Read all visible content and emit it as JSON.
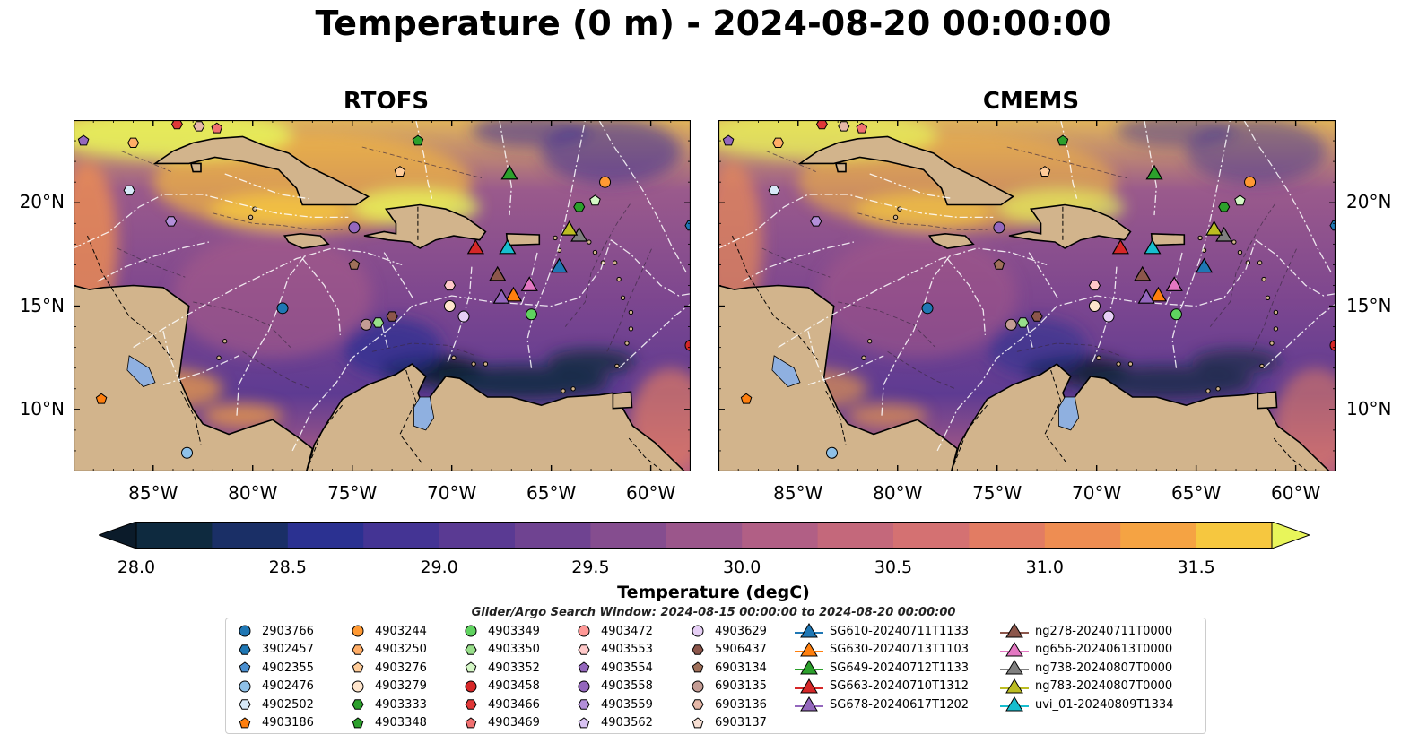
{
  "title": "Temperature (0 m) - 2024-08-20 00:00:00",
  "panels": [
    {
      "id": "rtofs",
      "title": "RTOFS"
    },
    {
      "id": "cmems",
      "title": "CMEMS"
    }
  ],
  "map_extent": {
    "lon_min": -89,
    "lon_max": -58,
    "lat_min": 7,
    "lat_max": 24
  },
  "lon_ticks": [
    {
      "value": -85,
      "label": "85°W"
    },
    {
      "value": -80,
      "label": "80°W"
    },
    {
      "value": -75,
      "label": "75°W"
    },
    {
      "value": -70,
      "label": "70°W"
    },
    {
      "value": -65,
      "label": "65°W"
    },
    {
      "value": -60,
      "label": "60°W"
    }
  ],
  "lat_ticks": [
    {
      "value": 20,
      "label": "20°N"
    },
    {
      "value": 15,
      "label": "15°N"
    },
    {
      "value": 10,
      "label": "10°N"
    }
  ],
  "colorbar": {
    "label": "Temperature (degC)",
    "min": 28.0,
    "max": 31.5,
    "step": 0.25,
    "extend": "both",
    "ticks": [
      "28.0",
      "28.5",
      "29.0",
      "29.5",
      "30.0",
      "30.5",
      "31.0",
      "31.5"
    ],
    "colors": [
      "#0e2a3f",
      "#1a2f66",
      "#2b3191",
      "#443494",
      "#5a3a93",
      "#6f4391",
      "#854d8f",
      "#9b568b",
      "#b15f85",
      "#c4687b",
      "#d47172",
      "#e27c63",
      "#ee8d52",
      "#f5a343",
      "#f6c73f"
    ],
    "over_color": "#e8f55a",
    "under_color": "#0b1b2a"
  },
  "colors": {
    "land": "#d2b48c",
    "ocean_mid": "#8d5590",
    "lake": "#8fb0e0"
  },
  "search_window": "Glider/Argo Search Window: 2024-08-15 00:00:00 to 2024-08-20 00:00:00",
  "argo_floats": [
    {
      "id": "2903766",
      "marker": "circle",
      "color": "#1f77b4",
      "lon": -78.5,
      "lat": 14.9
    },
    {
      "id": "3902457",
      "marker": "hexagon",
      "color": "#1f77b4",
      "lon": -58.0,
      "lat": 18.9
    },
    {
      "id": "4902355",
      "marker": "pentagon",
      "color": "#4a8fd0",
      "lon": -84.0,
      "lat": 24.3
    },
    {
      "id": "4902476",
      "marker": "circle",
      "color": "#8fc1e8",
      "lon": -83.3,
      "lat": 7.9
    },
    {
      "id": "4902502",
      "marker": "hexagon",
      "color": "#d7e9f8",
      "lon": -86.2,
      "lat": 20.6
    },
    {
      "id": "4903186",
      "marker": "pentagon",
      "color": "#ff7f0e",
      "lon": -87.6,
      "lat": 10.5
    },
    {
      "id": "4903244",
      "marker": "circle",
      "color": "#ff9933",
      "lon": -62.3,
      "lat": 21.0
    },
    {
      "id": "4903250",
      "marker": "hexagon",
      "color": "#ffad66",
      "lon": -86.0,
      "lat": 22.9
    },
    {
      "id": "4903276",
      "marker": "pentagon",
      "color": "#ffcc99",
      "lon": -72.6,
      "lat": 21.5
    },
    {
      "id": "4903279",
      "marker": "circle",
      "color": "#ffe5cc",
      "lon": -70.1,
      "lat": 15.0
    },
    {
      "id": "4903333",
      "marker": "hexagon",
      "color": "#2ca02c",
      "lon": -63.6,
      "lat": 19.8
    },
    {
      "id": "4903348",
      "marker": "pentagon",
      "color": "#2ca02c",
      "lon": -71.7,
      "lat": 23.0
    },
    {
      "id": "4903349",
      "marker": "circle",
      "color": "#5fd35f",
      "lon": -66.0,
      "lat": 14.6
    },
    {
      "id": "4903350",
      "marker": "hexagon",
      "color": "#98df8a",
      "lon": -73.7,
      "lat": 14.2
    },
    {
      "id": "4903352",
      "marker": "pentagon",
      "color": "#d4f7c5",
      "lon": -62.8,
      "lat": 20.1
    },
    {
      "id": "4903458",
      "marker": "circle",
      "color": "#d62728",
      "lon": -58.0,
      "lat": 13.1
    },
    {
      "id": "4903466",
      "marker": "hexagon",
      "color": "#e03838",
      "lon": -83.8,
      "lat": 23.8
    },
    {
      "id": "4903469",
      "marker": "pentagon",
      "color": "#f07070",
      "lon": -81.8,
      "lat": 23.6
    },
    {
      "id": "4903472",
      "marker": "circle",
      "color": "#ff9896",
      "lon": -88.0,
      "lat": 24.6
    },
    {
      "id": "4903553",
      "marker": "hexagon",
      "color": "#ffc9c9",
      "lon": -70.1,
      "lat": 16.0
    },
    {
      "id": "4903554",
      "marker": "pentagon",
      "color": "#9467bd",
      "lon": -88.5,
      "lat": 23.0
    },
    {
      "id": "4903558",
      "marker": "circle",
      "color": "#9467bd",
      "lon": -74.9,
      "lat": 18.8
    },
    {
      "id": "4903559",
      "marker": "hexagon",
      "color": "#b38fd9",
      "lon": -84.1,
      "lat": 19.1
    },
    {
      "id": "4903562",
      "marker": "pentagon",
      "color": "#d8c2f2",
      "lon": -84.2,
      "lat": 24.4
    },
    {
      "id": "4903629",
      "marker": "circle",
      "color": "#e6cff5",
      "lon": -69.4,
      "lat": 14.5
    },
    {
      "id": "5906437",
      "marker": "hexagon",
      "color": "#8c564b",
      "lon": -73.0,
      "lat": 14.5
    },
    {
      "id": "6903134",
      "marker": "pentagon",
      "color": "#a0705a",
      "lon": -74.9,
      "lat": 17.0
    },
    {
      "id": "6903135",
      "marker": "circle",
      "color": "#c49c94",
      "lon": -74.3,
      "lat": 14.1
    },
    {
      "id": "6903136",
      "marker": "hexagon",
      "color": "#e6b8a8",
      "lon": -82.7,
      "lat": 23.7
    },
    {
      "id": "6903137",
      "marker": "pentagon",
      "color": "#f7dfd3",
      "lon": -73.0,
      "lat": 25.0
    }
  ],
  "gliders": [
    {
      "id": "SG610-20240711T1133",
      "color": "#1f77b4",
      "lon": -64.6,
      "lat": 16.9
    },
    {
      "id": "SG630-20240713T1103",
      "color": "#ff7f0e",
      "lon": -66.9,
      "lat": 15.5
    },
    {
      "id": "SG649-20240712T1133",
      "color": "#2ca02c",
      "lon": -67.1,
      "lat": 21.4
    },
    {
      "id": "SG663-20240710T1312",
      "color": "#d62728",
      "lon": -68.8,
      "lat": 17.8
    },
    {
      "id": "SG678-20240617T1202",
      "color": "#9467bd",
      "lon": -67.5,
      "lat": 15.4
    },
    {
      "id": "ng278-20240711T0000",
      "color": "#8c564b",
      "lon": -67.7,
      "lat": 16.5
    },
    {
      "id": "ng656-20240613T0000",
      "color": "#e377c2",
      "lon": -66.1,
      "lat": 16.0
    },
    {
      "id": "ng738-20240807T0000",
      "color": "#7f7f7f",
      "lon": -63.6,
      "lat": 18.4
    },
    {
      "id": "ng783-20240807T0000",
      "color": "#bcbd22",
      "lon": -64.1,
      "lat": 18.7
    },
    {
      "id": "uvi_01-20240809T1334",
      "color": "#17becf",
      "lon": -67.2,
      "lat": 17.8
    }
  ]
}
